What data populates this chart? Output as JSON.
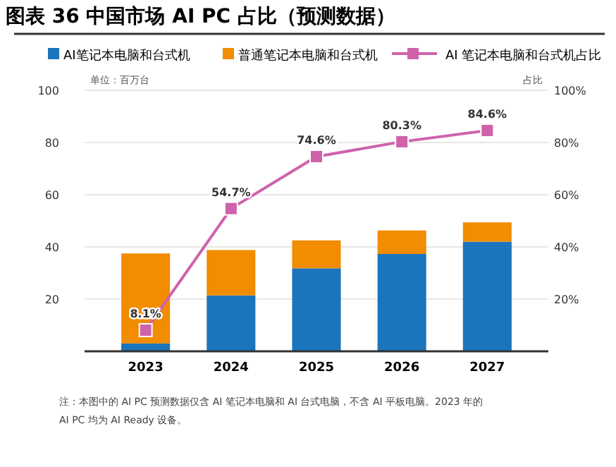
{
  "chart_data": {
    "type": "bar",
    "title": "图表 36 中国市场 AI PC 占比（预测数据）",
    "categories": [
      "2023",
      "2024",
      "2025",
      "2026",
      "2027"
    ],
    "stacked": true,
    "series": [
      {
        "name": "AI笔记本电脑和台式机",
        "color": "#1a75bc",
        "values": [
          3.0,
          21.4,
          31.8,
          37.3,
          42.0
        ]
      },
      {
        "name": "普通笔记本电脑和台式机",
        "color": "#f28c00",
        "values": [
          34.5,
          17.4,
          10.7,
          9.0,
          7.4
        ]
      },
      {
        "name": "AI 笔记本电脑和台式机占比",
        "type": "line",
        "axis": "y2",
        "color": "#cf62ab",
        "values": [
          8.1,
          54.7,
          74.6,
          80.3,
          84.6
        ],
        "value_labels": [
          "8.1%",
          "54.7%",
          "74.6%",
          "80.3%",
          "84.6%"
        ],
        "marker": "square"
      }
    ],
    "ylim": [
      0,
      100
    ],
    "yticks": [
      20,
      40,
      60,
      80,
      100
    ],
    "y2lim": [
      0,
      100
    ],
    "y2ticks": [
      {
        "value": 20,
        "label": "20%"
      },
      {
        "value": 40,
        "label": "40%"
      },
      {
        "value": 60,
        "label": "60%"
      },
      {
        "value": 80,
        "label": "80%"
      },
      {
        "value": 100,
        "label": "100%"
      }
    ],
    "ylabel": "单位：百万台",
    "y2label": "占比",
    "grid": "y",
    "legend": "top",
    "annotations": [
      "注：本图中的 AI PC 预测数据仅含 AI 笔记本电脑和 AI 台式电脑，不含 AI 平板电脑。2023 年的 AI PC 均为 AI Ready 设备。"
    ]
  }
}
